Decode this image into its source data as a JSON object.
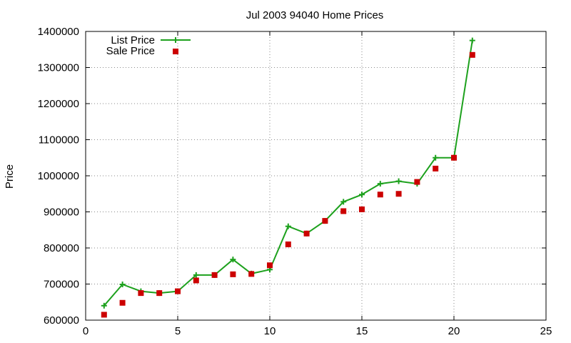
{
  "chart_data": {
    "type": "scatter",
    "title": "Jul 2003 94040 Home Prices",
    "xlabel": "",
    "ylabel": "Price",
    "xlim": [
      0,
      25
    ],
    "ylim": [
      600000,
      1400000
    ],
    "x_ticks": [
      "0",
      "5",
      "10",
      "15",
      "20",
      "25"
    ],
    "y_ticks": [
      "600000",
      "700000",
      "800000",
      "900000",
      "1000000",
      "1100000",
      "1200000",
      "1300000",
      "1400000"
    ],
    "grid": true,
    "legend_position": "top-left",
    "series": [
      {
        "name": "List Price",
        "style": "line-with-plus-markers",
        "color": "#1da11d",
        "x": [
          1,
          2,
          3,
          4,
          5,
          6,
          7,
          8,
          9,
          10,
          11,
          12,
          13,
          14,
          15,
          16,
          17,
          18,
          19,
          20,
          21
        ],
        "y": [
          640000,
          699000,
          680000,
          675000,
          680000,
          725000,
          725000,
          768000,
          729000,
          740000,
          860000,
          840000,
          875000,
          928000,
          948000,
          978000,
          985000,
          978000,
          1050000,
          1050000,
          1375000
        ]
      },
      {
        "name": "Sale Price",
        "style": "square-markers",
        "color": "#cc0000",
        "x": [
          1,
          2,
          3,
          4,
          5,
          6,
          7,
          8,
          9,
          10,
          11,
          12,
          13,
          14,
          15,
          16,
          17,
          18,
          19,
          20,
          21
        ],
        "y": [
          615000,
          648000,
          675000,
          675000,
          680000,
          710000,
          725000,
          727000,
          728000,
          752000,
          810000,
          840000,
          875000,
          902000,
          907000,
          948000,
          950000,
          983000,
          1020000,
          1050000,
          1335000
        ]
      }
    ]
  }
}
